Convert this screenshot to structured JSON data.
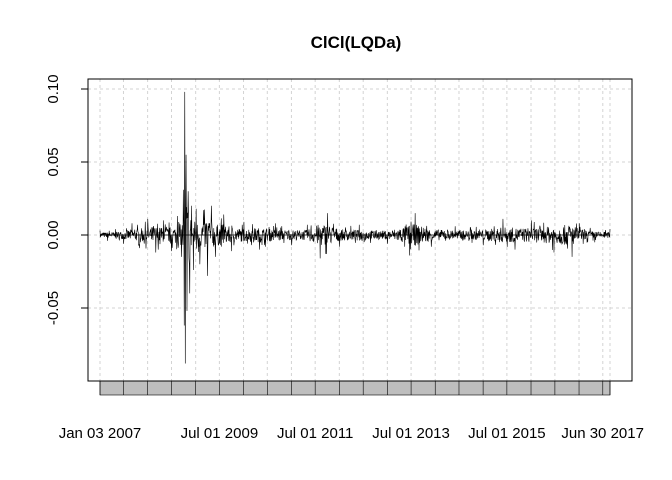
{
  "chart_data": {
    "type": "line",
    "title": "ClCl(LQDa)",
    "xlabel": "",
    "ylabel": "",
    "x_range": [
      "2007-01-03",
      "2017-08-25"
    ],
    "ylim": [
      -0.1,
      0.1
    ],
    "yticks": [
      0.1,
      0.05,
      0.0,
      -0.05
    ],
    "ytick_labels": [
      "0.10",
      "0.05",
      "0.00",
      "-0.05"
    ],
    "xtick_labels": [
      {
        "date": "2007-01-03",
        "label": "Jan 03 2007"
      },
      {
        "date": "2009-07-01",
        "label": "Jul 01 2009"
      },
      {
        "date": "2011-07-01",
        "label": "Jul 01 2011"
      },
      {
        "date": "2013-07-01",
        "label": "Jul 01 2013"
      },
      {
        "date": "2015-07-01",
        "label": "Jul 01 2015"
      },
      {
        "date": "2017-06-30",
        "label": "Jun 30 2017"
      }
    ],
    "grid": true,
    "line_color": "#000000",
    "grid_color": "#d3d3d3",
    "band_color": "#bebebe",
    "series": [
      {
        "values": [
          [
            "2007-01-03",
            0.003
          ],
          [
            "2007-03-01",
            -0.004
          ],
          [
            "2007-05-01",
            0.004
          ],
          [
            "2007-07-02",
            -0.006
          ],
          [
            "2007-09-04",
            0.008
          ],
          [
            "2007-11-01",
            -0.009
          ],
          [
            "2008-01-02",
            0.011
          ],
          [
            "2008-03-03",
            -0.012
          ],
          [
            "2008-05-01",
            0.01
          ],
          [
            "2008-07-01",
            -0.011
          ],
          [
            "2008-08-15",
            0.013
          ],
          [
            "2008-09-15",
            -0.015
          ],
          [
            "2008-09-29",
            0.031
          ],
          [
            "2008-10-06",
            -0.062
          ],
          [
            "2008-10-10",
            0.098
          ],
          [
            "2008-10-14",
            -0.088
          ],
          [
            "2008-10-20",
            0.055
          ],
          [
            "2008-10-27",
            -0.052
          ],
          [
            "2008-11-05",
            0.03
          ],
          [
            "2008-11-17",
            -0.04
          ],
          [
            "2008-12-01",
            0.02
          ],
          [
            "2008-12-15",
            -0.024
          ],
          [
            "2009-01-05",
            0.018
          ],
          [
            "2009-02-02",
            -0.02
          ],
          [
            "2009-03-02",
            0.017
          ],
          [
            "2009-04-01",
            -0.028
          ],
          [
            "2009-05-01",
            0.02
          ],
          [
            "2009-06-01",
            -0.015
          ],
          [
            "2009-08-03",
            0.014
          ],
          [
            "2009-10-01",
            -0.011
          ],
          [
            "2010-01-04",
            0.009
          ],
          [
            "2010-05-03",
            -0.01
          ],
          [
            "2010-09-01",
            0.008
          ],
          [
            "2011-01-03",
            -0.007
          ],
          [
            "2011-05-02",
            0.007
          ],
          [
            "2011-08-08",
            -0.016
          ],
          [
            "2011-10-03",
            0.015
          ],
          [
            "2012-01-03",
            -0.008
          ],
          [
            "2012-06-01",
            0.007
          ],
          [
            "2013-01-02",
            -0.006
          ],
          [
            "2013-06-20",
            -0.014
          ],
          [
            "2013-08-01",
            0.015
          ],
          [
            "2013-12-02",
            -0.008
          ],
          [
            "2014-06-02",
            0.006
          ],
          [
            "2015-01-02",
            -0.007
          ],
          [
            "2015-06-01",
            0.011
          ],
          [
            "2015-09-01",
            -0.01
          ],
          [
            "2016-01-04",
            0.01
          ],
          [
            "2016-06-24",
            -0.012
          ],
          [
            "2016-11-09",
            -0.015
          ],
          [
            "2017-01-03",
            0.008
          ],
          [
            "2017-05-01",
            -0.005
          ],
          [
            "2017-08-25",
            0.004
          ]
        ]
      }
    ]
  }
}
